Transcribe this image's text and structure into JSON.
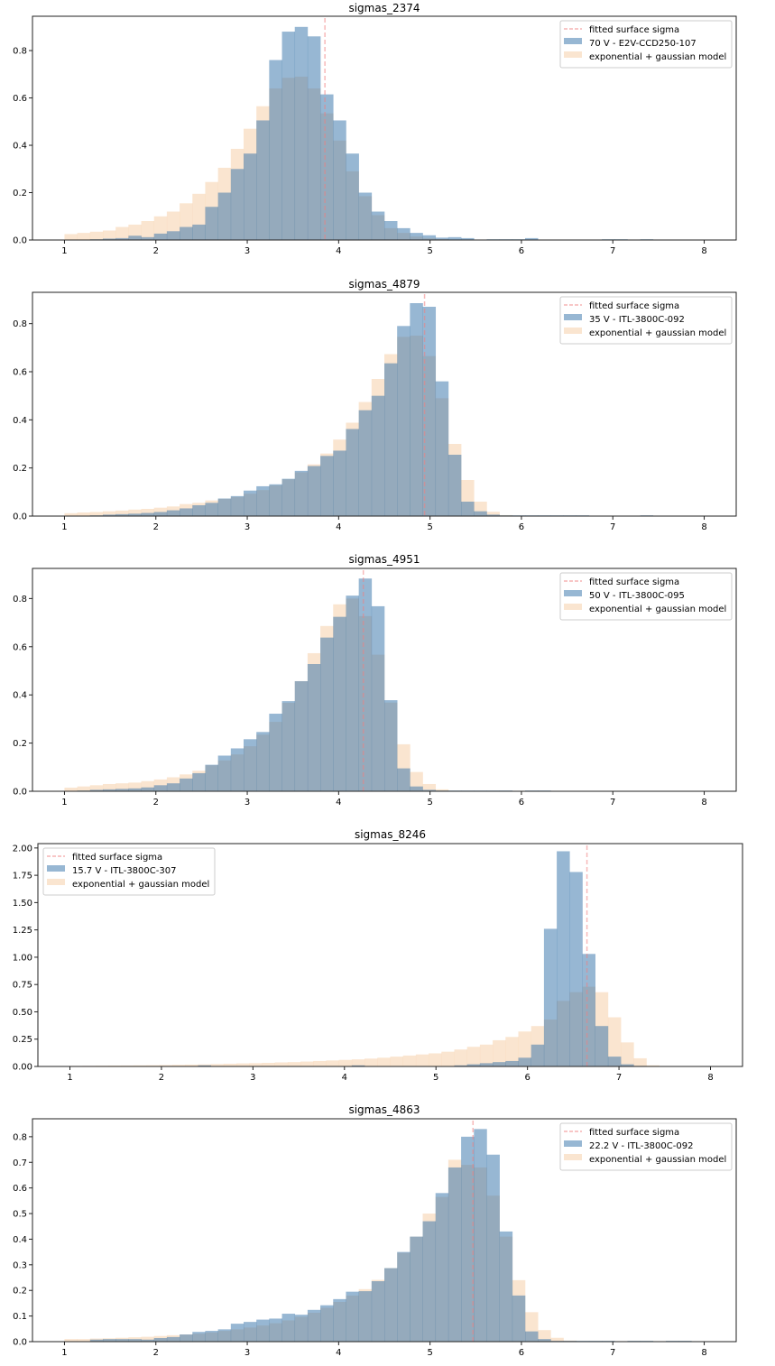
{
  "chart_data": [
    {
      "type": "bar",
      "subtype": "overlaid-histogram",
      "title": "sigmas_2374",
      "xlabel": "",
      "ylabel": "",
      "xlim": [
        0.65,
        8.35
      ],
      "ylim": [
        0,
        0.945
      ],
      "xticks": [
        1,
        2,
        3,
        4,
        5,
        6,
        7,
        8
      ],
      "yticks": [
        0.0,
        0.2,
        0.4,
        0.6,
        0.8
      ],
      "ytick_labels": [
        "0.0",
        "0.2",
        "0.4",
        "0.6",
        "0.8"
      ],
      "bin_start": 1.0,
      "bin_width": 0.14,
      "legend_position": "upper right",
      "fitted_surface_sigma": 3.85,
      "legend": [
        "fitted surface sigma",
        "70 V - E2V-CCD250-107",
        "exponential + gaussian model"
      ],
      "series": [
        {
          "name": "70 V - E2V-CCD250-107",
          "color": "#2f6fa8",
          "values": [
            0,
            0,
            0.003,
            0.006,
            0.008,
            0.018,
            0.012,
            0.027,
            0.037,
            0.055,
            0.065,
            0.14,
            0.2,
            0.3,
            0.365,
            0.505,
            0.76,
            0.88,
            0.9,
            0.86,
            0.615,
            0.505,
            0.365,
            0.2,
            0.12,
            0.08,
            0.05,
            0.03,
            0.02,
            0.01,
            0.012,
            0.008,
            0,
            0.003,
            0.003,
            0.003,
            0.008,
            0,
            0,
            0,
            0,
            0,
            0.003,
            0.003,
            0,
            0.003,
            0,
            0,
            0,
            0
          ]
        },
        {
          "name": "exponential + gaussian model",
          "color": "#f5cfa9",
          "values": [
            0.025,
            0.03,
            0.035,
            0.04,
            0.055,
            0.065,
            0.08,
            0.1,
            0.12,
            0.155,
            0.195,
            0.245,
            0.305,
            0.385,
            0.47,
            0.565,
            0.64,
            0.685,
            0.69,
            0.64,
            0.535,
            0.42,
            0.29,
            0.185,
            0.105,
            0.05,
            0.03,
            0.015,
            0.008,
            0.004,
            0.002,
            0.001,
            0,
            0,
            0,
            0,
            0,
            0,
            0,
            0,
            0,
            0,
            0,
            0,
            0,
            0,
            0,
            0,
            0,
            0
          ]
        }
      ]
    },
    {
      "type": "bar",
      "subtype": "overlaid-histogram",
      "title": "sigmas_4879",
      "xlabel": "",
      "ylabel": "",
      "xlim": [
        0.65,
        8.35
      ],
      "ylim": [
        0,
        0.93
      ],
      "xticks": [
        1,
        2,
        3,
        4,
        5,
        6,
        7,
        8
      ],
      "yticks": [
        0.0,
        0.2,
        0.4,
        0.6,
        0.8
      ],
      "ytick_labels": [
        "0.0",
        "0.2",
        "0.4",
        "0.6",
        "0.8"
      ],
      "bin_start": 1.0,
      "bin_width": 0.14,
      "legend_position": "upper right",
      "fitted_surface_sigma": 4.94,
      "legend": [
        "fitted surface sigma",
        "35 V - ITL-3800C-092",
        "exponential + gaussian model"
      ],
      "series": [
        {
          "name": "35 V - ITL-3800C-092",
          "color": "#2f6fa8",
          "values": [
            0,
            0,
            0.003,
            0.006,
            0.008,
            0.01,
            0.013,
            0.017,
            0.024,
            0.032,
            0.045,
            0.055,
            0.073,
            0.083,
            0.106,
            0.124,
            0.132,
            0.155,
            0.188,
            0.208,
            0.25,
            0.272,
            0.362,
            0.44,
            0.5,
            0.635,
            0.79,
            0.885,
            0.87,
            0.56,
            0.255,
            0.06,
            0.02,
            0.006,
            0.003,
            0.003,
            0.003,
            0.003,
            0.003,
            0.003,
            0.003,
            0,
            0,
            0,
            0,
            0.003,
            0,
            0,
            0,
            0
          ]
        },
        {
          "name": "exponential + gaussian model",
          "color": "#f5cfa9",
          "values": [
            0.012,
            0.015,
            0.017,
            0.02,
            0.023,
            0.027,
            0.03,
            0.035,
            0.04,
            0.05,
            0.055,
            0.065,
            0.072,
            0.08,
            0.093,
            0.108,
            0.128,
            0.153,
            0.182,
            0.215,
            0.26,
            0.318,
            0.388,
            0.474,
            0.57,
            0.673,
            0.745,
            0.75,
            0.665,
            0.49,
            0.3,
            0.15,
            0.06,
            0.018,
            0.004,
            0.001,
            0,
            0,
            0,
            0,
            0,
            0,
            0,
            0,
            0,
            0,
            0,
            0,
            0,
            0
          ]
        }
      ]
    },
    {
      "type": "bar",
      "subtype": "overlaid-histogram",
      "title": "sigmas_4951",
      "xlabel": "",
      "ylabel": "",
      "xlim": [
        0.65,
        8.35
      ],
      "ylim": [
        0,
        0.925
      ],
      "xticks": [
        1,
        2,
        3,
        4,
        5,
        6,
        7,
        8
      ],
      "yticks": [
        0.0,
        0.2,
        0.4,
        0.6,
        0.8
      ],
      "ytick_labels": [
        "0.0",
        "0.2",
        "0.4",
        "0.6",
        "0.8"
      ],
      "bin_start": 1.0,
      "bin_width": 0.14,
      "legend_position": "upper right",
      "fitted_surface_sigma": 4.27,
      "legend": [
        "fitted surface sigma",
        "50 V - ITL-3800C-095",
        "exponential + gaussian model"
      ],
      "series": [
        {
          "name": "50 V - ITL-3800C-095",
          "color": "#2f6fa8",
          "values": [
            0,
            0.003,
            0.006,
            0.008,
            0.01,
            0.012,
            0.016,
            0.025,
            0.033,
            0.053,
            0.075,
            0.11,
            0.148,
            0.178,
            0.216,
            0.246,
            0.322,
            0.374,
            0.457,
            0.528,
            0.638,
            0.724,
            0.812,
            0.883,
            0.768,
            0.378,
            0.095,
            0.02,
            0.006,
            0.003,
            0.003,
            0.003,
            0.003,
            0.003,
            0.003,
            0,
            0.003,
            0.003,
            0,
            0,
            0,
            0,
            0,
            0,
            0,
            0,
            0,
            0,
            0,
            0
          ]
        },
        {
          "name": "exponential + gaussian model",
          "color": "#f5cfa9",
          "values": [
            0.015,
            0.02,
            0.025,
            0.03,
            0.033,
            0.036,
            0.042,
            0.049,
            0.058,
            0.07,
            0.085,
            0.108,
            0.128,
            0.153,
            0.187,
            0.235,
            0.288,
            0.367,
            0.457,
            0.573,
            0.686,
            0.776,
            0.8,
            0.727,
            0.567,
            0.368,
            0.195,
            0.08,
            0.03,
            0.008,
            0.002,
            0,
            0,
            0,
            0,
            0,
            0,
            0,
            0,
            0,
            0,
            0,
            0,
            0,
            0,
            0,
            0,
            0,
            0,
            0
          ]
        }
      ]
    },
    {
      "type": "bar",
      "subtype": "overlaid-histogram",
      "title": "sigmas_8246",
      "xlabel": "",
      "ylabel": "",
      "xlim": [
        0.65,
        8.35
      ],
      "ylim": [
        0,
        2.04
      ],
      "xticks": [
        1,
        2,
        3,
        4,
        5,
        6,
        7,
        8
      ],
      "yticks": [
        0.0,
        0.25,
        0.5,
        0.75,
        1.0,
        1.25,
        1.5,
        1.75,
        2.0
      ],
      "ytick_labels": [
        "0.00",
        "0.25",
        "0.50",
        "0.75",
        "1.00",
        "1.25",
        "1.50",
        "1.75",
        "2.00"
      ],
      "bin_start": 1.0,
      "bin_width": 0.14,
      "legend_position": "upper left",
      "fitted_surface_sigma": 6.65,
      "legend": [
        "fitted surface sigma",
        "15.7 V - ITL-3800C-307",
        "exponential + gaussian model"
      ],
      "series": [
        {
          "name": "15.7 V - ITL-3800C-307",
          "color": "#2f6fa8",
          "values": [
            0,
            0,
            0,
            0,
            0,
            0,
            0,
            0,
            0,
            0,
            0.01,
            0,
            0,
            0,
            0,
            0,
            0,
            0,
            0,
            0,
            0,
            0,
            0.01,
            0,
            0,
            0,
            0,
            0,
            0,
            0,
            0.01,
            0.02,
            0.03,
            0.04,
            0.05,
            0.08,
            0.2,
            1.26,
            1.97,
            1.78,
            1.03,
            0.37,
            0.09,
            0.02,
            0.005,
            0,
            0,
            0,
            0,
            0
          ]
        },
        {
          "name": "exponential + gaussian model",
          "color": "#f5cfa9",
          "values": [
            0.005,
            0.006,
            0.007,
            0.008,
            0.009,
            0.01,
            0.011,
            0.013,
            0.015,
            0.017,
            0.019,
            0.022,
            0.025,
            0.028,
            0.03,
            0.033,
            0.037,
            0.04,
            0.045,
            0.05,
            0.055,
            0.06,
            0.065,
            0.072,
            0.08,
            0.09,
            0.1,
            0.11,
            0.12,
            0.135,
            0.155,
            0.18,
            0.2,
            0.24,
            0.27,
            0.32,
            0.37,
            0.43,
            0.6,
            0.68,
            0.73,
            0.68,
            0.45,
            0.22,
            0.075,
            0.01,
            0.002,
            0,
            0,
            0
          ]
        }
      ]
    },
    {
      "type": "bar",
      "subtype": "overlaid-histogram",
      "title": "sigmas_4863",
      "xlabel": "",
      "ylabel": "",
      "xlim": [
        0.65,
        8.35
      ],
      "ylim": [
        0,
        0.87
      ],
      "xticks": [
        1,
        2,
        3,
        4,
        5,
        6,
        7,
        8
      ],
      "yticks": [
        0.0,
        0.1,
        0.2,
        0.3,
        0.4,
        0.5,
        0.6,
        0.7,
        0.8
      ],
      "ytick_labels": [
        "0.0",
        "0.1",
        "0.2",
        "0.3",
        "0.4",
        "0.5",
        "0.6",
        "0.7",
        "0.8"
      ],
      "bin_start": 1.0,
      "bin_width": 0.14,
      "legend_position": "upper right",
      "fitted_surface_sigma": 5.47,
      "legend": [
        "fitted surface sigma",
        "22.2 V - ITL-3800C-092",
        "exponential + gaussian model"
      ],
      "series": [
        {
          "name": "22.2 V - ITL-3800C-092",
          "color": "#2f6fa8",
          "values": [
            0,
            0,
            0.008,
            0.01,
            0.01,
            0.01,
            0.008,
            0.014,
            0.018,
            0.028,
            0.038,
            0.042,
            0.048,
            0.07,
            0.077,
            0.086,
            0.09,
            0.109,
            0.105,
            0.124,
            0.142,
            0.166,
            0.195,
            0.197,
            0.236,
            0.287,
            0.35,
            0.41,
            0.47,
            0.58,
            0.68,
            0.8,
            0.83,
            0.73,
            0.43,
            0.18,
            0.04,
            0.01,
            0.003,
            0.003,
            0.003,
            0.003,
            0.003,
            0,
            0.003,
            0.003,
            0,
            0.003,
            0.003,
            0
          ]
        },
        {
          "name": "exponential + gaussian model",
          "color": "#f5cfa9",
          "values": [
            0.01,
            0.01,
            0.012,
            0.013,
            0.015,
            0.017,
            0.019,
            0.022,
            0.025,
            0.028,
            0.031,
            0.036,
            0.042,
            0.048,
            0.055,
            0.063,
            0.072,
            0.083,
            0.097,
            0.113,
            0.132,
            0.155,
            0.18,
            0.205,
            0.241,
            0.287,
            0.347,
            0.41,
            0.5,
            0.565,
            0.71,
            0.69,
            0.68,
            0.57,
            0.41,
            0.24,
            0.115,
            0.045,
            0.015,
            0.004,
            0.001,
            0,
            0,
            0,
            0,
            0,
            0,
            0,
            0,
            0
          ]
        }
      ]
    }
  ],
  "style": {
    "blue_color": "#2f6fa8",
    "orange_color": "#f5cfa9",
    "overlap_color": "#a5acad",
    "fit_line_color": "#f08080"
  }
}
